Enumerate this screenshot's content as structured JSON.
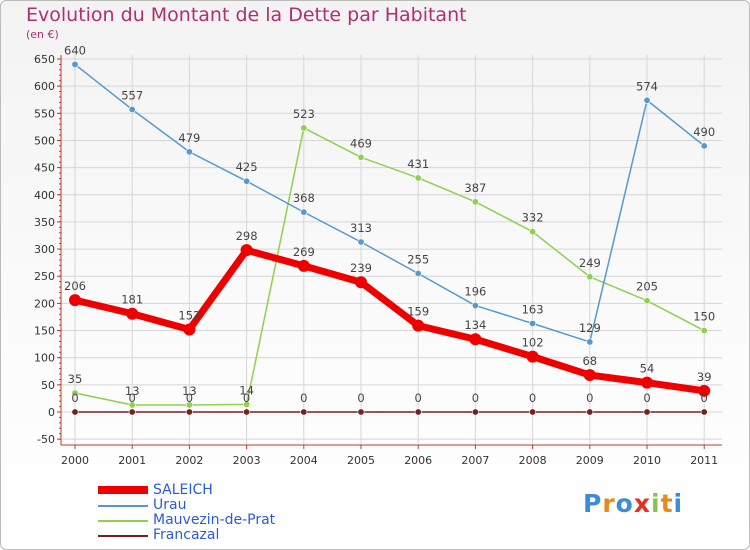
{
  "chart_data": {
    "type": "line",
    "title": "Evolution du Montant de la Dette par Habitant",
    "subtitle": "(en €)",
    "x": [
      "2000",
      "2001",
      "2002",
      "2003",
      "2004",
      "2005",
      "2006",
      "2007",
      "2008",
      "2009",
      "2010",
      "2011"
    ],
    "ylim": [
      -50,
      650
    ],
    "yticks": [
      -50,
      0,
      50,
      100,
      150,
      200,
      250,
      300,
      350,
      400,
      450,
      500,
      550,
      600,
      650
    ],
    "grid": true,
    "legend_position": "bottom-left",
    "series": [
      {
        "name": "Francazal",
        "color": "#7a1f1f",
        "values": [
          0,
          0,
          0,
          0,
          0,
          0,
          0,
          0,
          0,
          0,
          0,
          0
        ]
      },
      {
        "name": "Mauvezin-de-Prat",
        "color": "#8fd14f",
        "values": [
          35,
          13,
          13,
          14,
          523,
          469,
          431,
          387,
          332,
          249,
          205,
          150
        ]
      },
      {
        "name": "Urau",
        "color": "#5599d0",
        "values": [
          640,
          557,
          479,
          425,
          368,
          313,
          255,
          196,
          163,
          129,
          574,
          490
        ]
      },
      {
        "name": "SALEICH",
        "color": "#ee0000",
        "values": [
          206,
          181,
          152,
          298,
          269,
          239,
          159,
          134,
          102,
          68,
          54,
          39
        ]
      }
    ]
  },
  "legend": [
    {
      "name": "SALEICH",
      "color": "#ee0000"
    },
    {
      "name": "Urau",
      "color": "#5599d0"
    },
    {
      "name": "Mauvezin-de-Prat",
      "color": "#8fd14f"
    },
    {
      "name": "Francazal",
      "color": "#7a1f1f"
    }
  ],
  "logo": {
    "letters": [
      "P",
      "r",
      "o",
      "x",
      "i",
      "t",
      "i"
    ],
    "colors": [
      "#3a8ed8",
      "#e88a1a",
      "#3a8ed8",
      "#e83020",
      "#8bc34a",
      "#e88a1a",
      "#3a8ed8"
    ]
  }
}
